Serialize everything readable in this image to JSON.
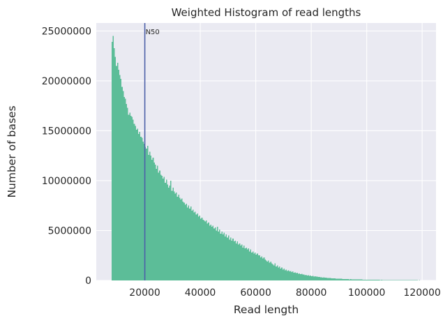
{
  "chart_data": {
    "type": "bar",
    "title": "Weighted Histogram of read lengths",
    "xlabel": "Read length",
    "ylabel": "Number of bases",
    "xlim": [
      2500,
      125000
    ],
    "ylim": [
      0,
      25800000
    ],
    "xticks": [
      20000,
      40000,
      60000,
      80000,
      100000,
      120000
    ],
    "yticks": [
      0,
      5000000,
      10000000,
      15000000,
      20000000,
      25000000
    ],
    "grid": true,
    "bar_color": "#5cbd98",
    "annotation": {
      "label": "N50",
      "x": 20000,
      "color": "#4c5fa8"
    },
    "histogram": {
      "bin_start": 8000,
      "bin_width": 400,
      "values": [
        23900000,
        24500000,
        23300000,
        22400000,
        21500000,
        21800000,
        21100000,
        20600000,
        20200000,
        19400000,
        19000000,
        18400000,
        18200000,
        17700000,
        17300000,
        16600000,
        16800000,
        16500000,
        16400000,
        16100000,
        15700000,
        15500000,
        15100000,
        15200000,
        14700000,
        14900000,
        14400000,
        14300000,
        13900000,
        13700000,
        13400000,
        13200000,
        13500000,
        12600000,
        12900000,
        12500000,
        12100000,
        12300000,
        11800000,
        11600000,
        11200000,
        11500000,
        10800000,
        11000000,
        10600000,
        10500000,
        10200000,
        10400000,
        9800000,
        10100000,
        9600000,
        9300000,
        9500000,
        10000000,
        9000000,
        9300000,
        8900000,
        8700000,
        8800000,
        8400000,
        8600000,
        8300000,
        8100000,
        8200000,
        7900000,
        7800000,
        7600000,
        7700000,
        7300000,
        7500000,
        7200000,
        7400000,
        7000000,
        7100000,
        6800000,
        6900000,
        6600000,
        6700000,
        6400000,
        6500000,
        6200000,
        6300000,
        6100000,
        6000000,
        5900000,
        6000000,
        5700000,
        5800000,
        5500000,
        5600000,
        5400000,
        5500000,
        5200000,
        5300000,
        5000000,
        5400000,
        4900000,
        5100000,
        4700000,
        4900000,
        4600000,
        4800000,
        4400000,
        4600000,
        4300000,
        4500000,
        4100000,
        4300000,
        4000000,
        4200000,
        3900000,
        4000000,
        3700000,
        3900000,
        3600000,
        3700000,
        3500000,
        3600000,
        3300000,
        3500000,
        3200000,
        3300000,
        3100000,
        3200000,
        2900000,
        3100000,
        2800000,
        2900000,
        2700000,
        2800000,
        2600000,
        2700000,
        2500000,
        2500000,
        2300000,
        2400000,
        2200000,
        2300000,
        2100000,
        2000000,
        1900000,
        2000000,
        1800000,
        1900000,
        1700000,
        1600000,
        1500000,
        1700000,
        1400000,
        1500000,
        1300000,
        1400000,
        1200000,
        1300000,
        1100000,
        1200000,
        1000000,
        1100000,
        950000,
        1000000,
        900000,
        950000,
        850000,
        900000,
        780000,
        820000,
        720000,
        760000,
        680000,
        700000,
        620000,
        650000,
        580000,
        600000,
        540000,
        560000,
        500000,
        520000,
        460000,
        480000,
        430000,
        450000,
        400000,
        410000,
        370000,
        380000,
        340000,
        350000,
        310000,
        330000,
        290000,
        300000,
        270000,
        280000,
        250000,
        260000,
        230000,
        240000,
        210000,
        220000,
        200000,
        210000,
        180000,
        190000,
        170000,
        180000,
        160000,
        165000,
        150000,
        155000,
        140000,
        145000,
        130000,
        135000,
        120000,
        125000,
        115000,
        120000,
        105000,
        110000,
        100000,
        104000,
        95000,
        98000,
        88000,
        92000,
        84000,
        86000,
        80000,
        82000,
        75000,
        78000,
        70000,
        73000,
        66000,
        68000,
        62000,
        64000,
        58000,
        60000,
        55000,
        57000,
        52000,
        54000,
        49000,
        51000,
        46000,
        48000,
        43000,
        45000,
        41000,
        42000,
        38000,
        40000,
        36000,
        37000,
        34000,
        35000,
        32000,
        33000,
        30000,
        31000,
        28000,
        29000,
        26000,
        27000,
        24000,
        25000,
        22000,
        23000,
        20000,
        21000,
        19000,
        20000,
        18000,
        18500,
        17000,
        17500,
        16000,
        16500,
        15000,
        15500,
        14000,
        14500,
        13000,
        13500,
        12000,
        12500,
        11000,
        11500
      ]
    }
  }
}
